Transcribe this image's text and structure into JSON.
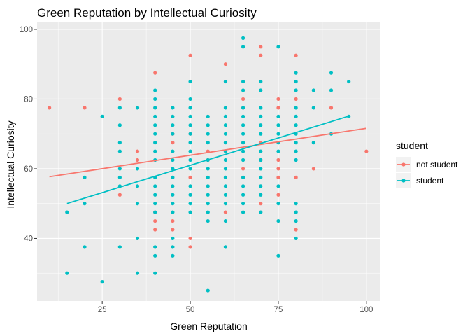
{
  "chart_data": {
    "type": "scatter",
    "title": "Green Reputation by Intellectual Curiosity",
    "xlabel": "Green Reputation",
    "ylabel": "Intellectual Curiosity",
    "xlim": [
      6.5,
      104
    ],
    "ylim": [
      22,
      102
    ],
    "x_ticks": [
      25,
      50,
      75,
      100
    ],
    "y_ticks": [
      40,
      60,
      80,
      100
    ],
    "grid": true,
    "legend": {
      "title": "student",
      "position": "right"
    },
    "series": [
      {
        "name": "not student",
        "color": "#F8766D",
        "points": [
          [
            10,
            77.5
          ],
          [
            20,
            77.5
          ],
          [
            30,
            80
          ],
          [
            30,
            52.5
          ],
          [
            35,
            65
          ],
          [
            35,
            62.5
          ],
          [
            40,
            87.5
          ],
          [
            40,
            47.5
          ],
          [
            40,
            45
          ],
          [
            40,
            42.5
          ],
          [
            45,
            70
          ],
          [
            45,
            67.5
          ],
          [
            45,
            45
          ],
          [
            45,
            42.5
          ],
          [
            50,
            92.5
          ],
          [
            50,
            70
          ],
          [
            50,
            57.5
          ],
          [
            50,
            40
          ],
          [
            50,
            37.5
          ],
          [
            55,
            65
          ],
          [
            55,
            62.5
          ],
          [
            60,
            90
          ],
          [
            60,
            65
          ],
          [
            60,
            47.5
          ],
          [
            65,
            80
          ],
          [
            65,
            77.5
          ],
          [
            65,
            67.5
          ],
          [
            65,
            60
          ],
          [
            65,
            57.5
          ],
          [
            70,
            95
          ],
          [
            70,
            92.5
          ],
          [
            70,
            67.5
          ],
          [
            70,
            62.5
          ],
          [
            70,
            50
          ],
          [
            75,
            80
          ],
          [
            75,
            77.5
          ],
          [
            75,
            67.5
          ],
          [
            75,
            62.5
          ],
          [
            75,
            60
          ],
          [
            75,
            57.5
          ],
          [
            75,
            52.5
          ],
          [
            80,
            92.5
          ],
          [
            80,
            80
          ],
          [
            80,
            57.5
          ],
          [
            80,
            42.5
          ],
          [
            85,
            60
          ],
          [
            90,
            77.5
          ],
          [
            100,
            65
          ]
        ],
        "trend": {
          "x": [
            10,
            100
          ],
          "y": [
            57.7,
            71.6
          ]
        }
      },
      {
        "name": "student",
        "color": "#00BFC4",
        "points": [
          [
            15,
            47.5
          ],
          [
            15,
            30
          ],
          [
            20,
            57.5
          ],
          [
            20,
            50
          ],
          [
            20,
            37.5
          ],
          [
            25,
            75
          ],
          [
            25,
            27.5
          ],
          [
            30,
            77.5
          ],
          [
            30,
            72.5
          ],
          [
            30,
            67.5
          ],
          [
            30,
            65
          ],
          [
            30,
            60
          ],
          [
            30,
            57.5
          ],
          [
            30,
            55
          ],
          [
            30,
            37.5
          ],
          [
            35,
            77.5
          ],
          [
            35,
            60
          ],
          [
            35,
            55
          ],
          [
            35,
            50
          ],
          [
            35,
            40
          ],
          [
            35,
            30
          ],
          [
            40,
            82.5
          ],
          [
            40,
            80
          ],
          [
            40,
            77.5
          ],
          [
            40,
            75
          ],
          [
            40,
            72.5
          ],
          [
            40,
            70
          ],
          [
            40,
            67.5
          ],
          [
            40,
            65
          ],
          [
            40,
            62.5
          ],
          [
            40,
            57.5
          ],
          [
            40,
            55
          ],
          [
            40,
            52.5
          ],
          [
            40,
            50
          ],
          [
            40,
            47.5
          ],
          [
            40,
            37.5
          ],
          [
            40,
            35
          ],
          [
            40,
            30
          ],
          [
            45,
            77.5
          ],
          [
            45,
            75
          ],
          [
            45,
            72.5
          ],
          [
            45,
            70
          ],
          [
            45,
            65
          ],
          [
            45,
            62.5
          ],
          [
            45,
            60
          ],
          [
            45,
            57.5
          ],
          [
            45,
            55
          ],
          [
            45,
            52.5
          ],
          [
            45,
            50
          ],
          [
            45,
            47.5
          ],
          [
            45,
            40
          ],
          [
            45,
            37.5
          ],
          [
            45,
            35
          ],
          [
            50,
            85
          ],
          [
            50,
            80
          ],
          [
            50,
            77.5
          ],
          [
            50,
            75
          ],
          [
            50,
            72.5
          ],
          [
            50,
            70
          ],
          [
            50,
            67.5
          ],
          [
            50,
            65
          ],
          [
            50,
            62.5
          ],
          [
            50,
            60
          ],
          [
            50,
            55
          ],
          [
            50,
            52.5
          ],
          [
            50,
            50
          ],
          [
            50,
            47.5
          ],
          [
            55,
            75
          ],
          [
            55,
            72.5
          ],
          [
            55,
            70
          ],
          [
            55,
            67.5
          ],
          [
            55,
            62.5
          ],
          [
            55,
            60
          ],
          [
            55,
            57.5
          ],
          [
            55,
            55
          ],
          [
            55,
            52.5
          ],
          [
            55,
            50
          ],
          [
            55,
            47.5
          ],
          [
            55,
            45
          ],
          [
            55,
            25
          ],
          [
            60,
            85
          ],
          [
            60,
            77.5
          ],
          [
            60,
            75
          ],
          [
            60,
            72.5
          ],
          [
            60,
            70
          ],
          [
            60,
            67.5
          ],
          [
            60,
            65
          ],
          [
            60,
            62.5
          ],
          [
            60,
            60
          ],
          [
            60,
            57.5
          ],
          [
            60,
            55
          ],
          [
            60,
            52.5
          ],
          [
            60,
            50
          ],
          [
            60,
            45
          ],
          [
            60,
            37.5
          ],
          [
            65,
            97.5
          ],
          [
            65,
            95
          ],
          [
            65,
            85
          ],
          [
            65,
            82.5
          ],
          [
            65,
            77.5
          ],
          [
            65,
            75
          ],
          [
            65,
            72.5
          ],
          [
            65,
            70
          ],
          [
            65,
            67.5
          ],
          [
            65,
            65
          ],
          [
            65,
            62.5
          ],
          [
            65,
            57.5
          ],
          [
            65,
            55
          ],
          [
            65,
            52.5
          ],
          [
            65,
            50
          ],
          [
            65,
            47.5
          ],
          [
            70,
            85
          ],
          [
            70,
            82.5
          ],
          [
            70,
            77.5
          ],
          [
            70,
            75
          ],
          [
            70,
            72.5
          ],
          [
            70,
            70
          ],
          [
            70,
            65
          ],
          [
            70,
            62.5
          ],
          [
            70,
            60
          ],
          [
            70,
            57.5
          ],
          [
            70,
            55
          ],
          [
            70,
            52.5
          ],
          [
            70,
            47.5
          ],
          [
            75,
            95
          ],
          [
            75,
            75
          ],
          [
            75,
            72.5
          ],
          [
            75,
            70
          ],
          [
            75,
            67.5
          ],
          [
            75,
            65
          ],
          [
            75,
            55
          ],
          [
            75,
            50
          ],
          [
            75,
            45
          ],
          [
            75,
            35
          ],
          [
            80,
            87.5
          ],
          [
            80,
            85
          ],
          [
            80,
            82.5
          ],
          [
            80,
            77.5
          ],
          [
            80,
            75
          ],
          [
            80,
            72.5
          ],
          [
            80,
            70
          ],
          [
            80,
            67.5
          ],
          [
            80,
            65
          ],
          [
            80,
            62.5
          ],
          [
            80,
            50
          ],
          [
            80,
            47.5
          ],
          [
            80,
            45
          ],
          [
            80,
            40
          ],
          [
            85,
            82.5
          ],
          [
            85,
            77.5
          ],
          [
            85,
            67.5
          ],
          [
            90,
            87.5
          ],
          [
            90,
            82.5
          ],
          [
            90,
            70
          ],
          [
            95,
            85
          ],
          [
            95,
            75
          ]
        ],
        "trend": {
          "x": [
            15,
            95
          ],
          "y": [
            50.0,
            75.1
          ]
        }
      }
    ]
  }
}
